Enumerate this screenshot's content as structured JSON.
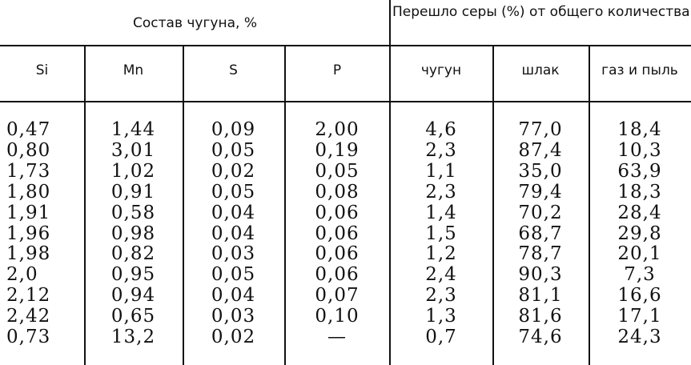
{
  "table": {
    "group_headers": [
      "Состав чугуна, %",
      "Перешло серы (%) от общего количества в"
    ],
    "columns": [
      "Si",
      "Mn",
      "S",
      "P",
      "чугун",
      "шлак",
      "газ и пыль"
    ],
    "rows": [
      [
        "0,47",
        "1,44",
        "0,09",
        "2,00",
        "4,6",
        "77,0",
        "18,4"
      ],
      [
        "0,80",
        "3,01",
        "0,05",
        "0,19",
        "2,3",
        "87,4",
        "10,3"
      ],
      [
        "1,73",
        "1,02",
        "0,02",
        "0,05",
        "1,1",
        "35,0",
        "63,9"
      ],
      [
        "1,80",
        "0,91",
        "0,05",
        "0,08",
        "2,3",
        "79,4",
        "18,3"
      ],
      [
        "1,91",
        "0,58",
        "0,04",
        "0,06",
        "1,4",
        "70,2",
        "28,4"
      ],
      [
        "1,96",
        "0,98",
        "0,04",
        "0,06",
        "1,5",
        "68,7",
        "29,8"
      ],
      [
        "1,98",
        "0,82",
        "0,03",
        "0,06",
        "1,2",
        "78,7",
        "20,1"
      ],
      [
        "2,0",
        "0,95",
        "0,05",
        "0,06",
        "2,4",
        "90,3",
        "7,3"
      ],
      [
        "2,12",
        "0,94",
        "0,04",
        "0,07",
        "2,3",
        "81,1",
        "16,6"
      ],
      [
        "2,42",
        "0,65",
        "0,03",
        "0,10",
        "1,3",
        "81,6",
        "17,1"
      ],
      [
        "0,73",
        "13,2",
        "0,02",
        "—",
        "0,7",
        "74,6",
        "24,3"
      ]
    ]
  }
}
